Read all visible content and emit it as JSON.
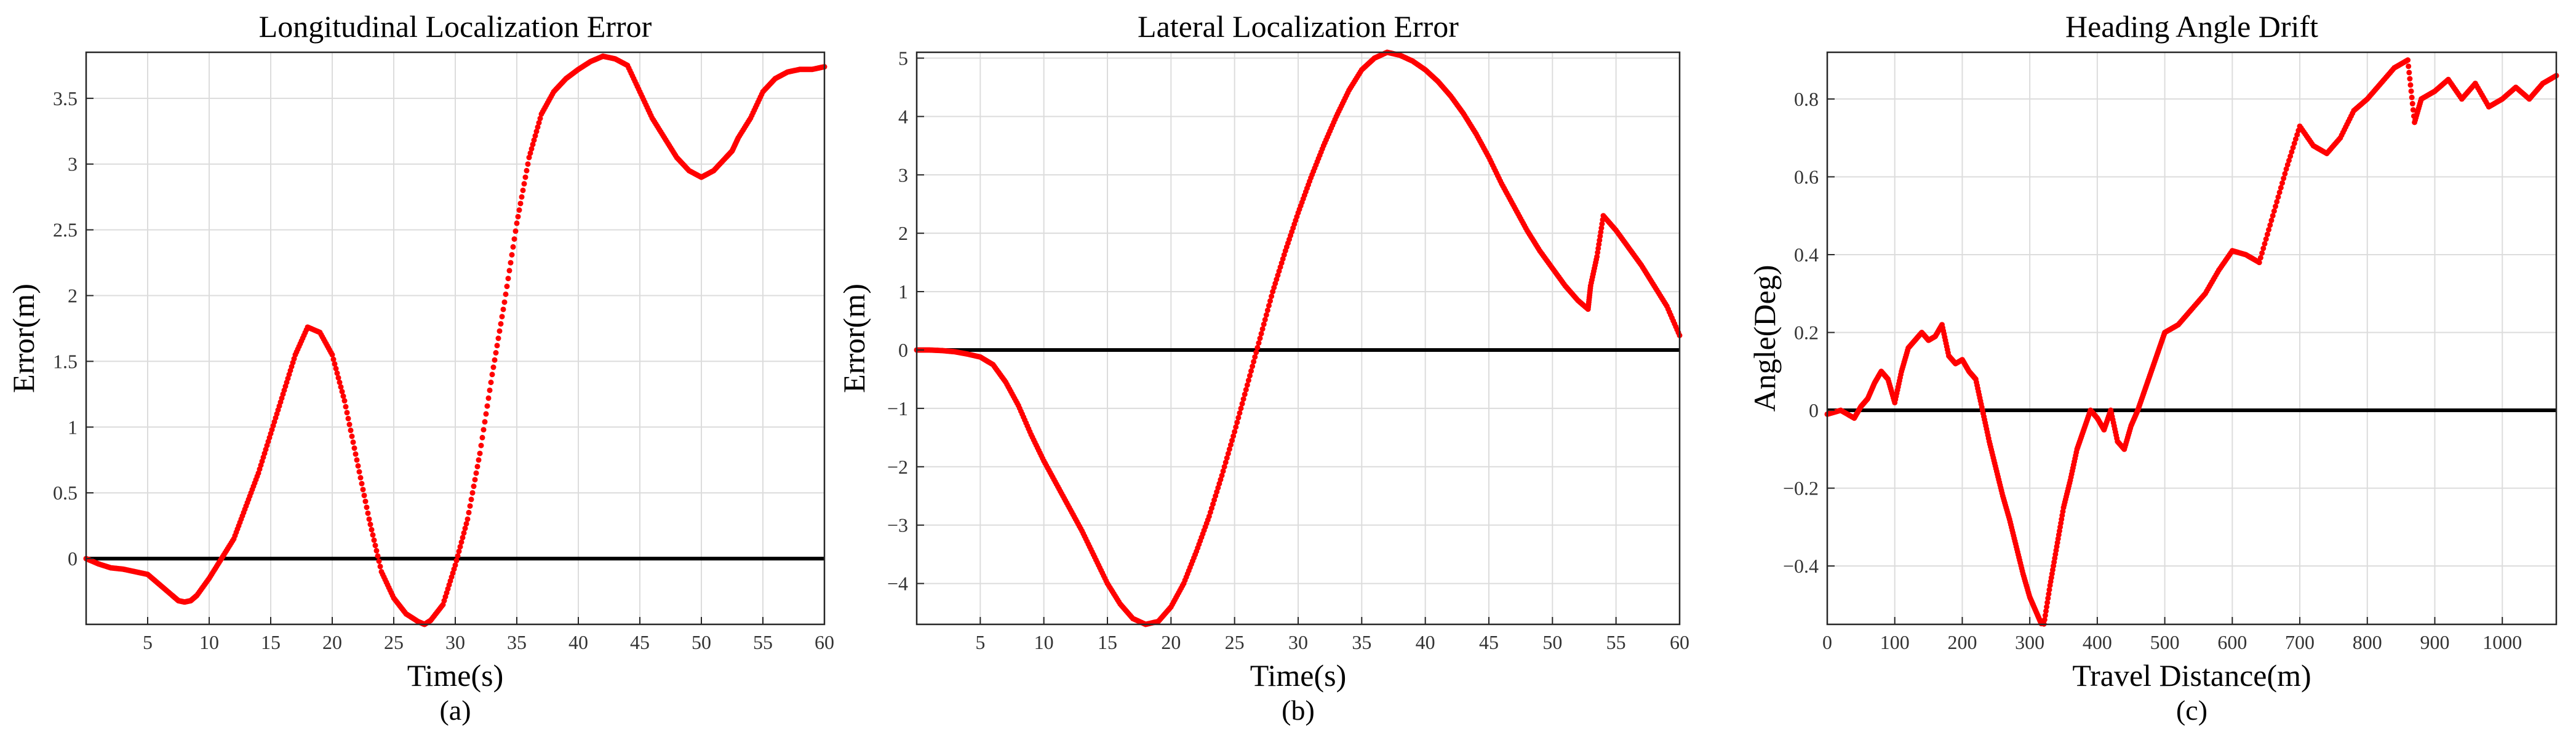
{
  "chart_data": [
    {
      "type": "scatter",
      "title": "Longitudinal Localization Error",
      "xlabel": "Time(s)",
      "ylabel": "Error(m)",
      "caption": "(a)",
      "xlim": [
        0,
        60
      ],
      "ylim": [
        -0.5,
        3.85
      ],
      "xticks": [
        5,
        10,
        15,
        20,
        25,
        30,
        35,
        40,
        45,
        50,
        55,
        60
      ],
      "yticks": [
        0,
        0.5,
        1,
        1.5,
        2,
        2.5,
        3,
        3.5
      ],
      "grid": true,
      "marker_color": "#ff0000",
      "reference_line": {
        "y": 0,
        "color": "#000000"
      },
      "series": [
        {
          "x": [
            0,
            1,
            2,
            3,
            4,
            5,
            6,
            7,
            7.5,
            8,
            8.5,
            9,
            10,
            11,
            12,
            13,
            14,
            15,
            16,
            17,
            18,
            19,
            20,
            21,
            22,
            23,
            24,
            25,
            26,
            27,
            27.5,
            28,
            29,
            30,
            31,
            32,
            33,
            34,
            35,
            36,
            37,
            38,
            39,
            40,
            41,
            42,
            43,
            44,
            45,
            46,
            47,
            48,
            49,
            50,
            51,
            52,
            52.5,
            53,
            54,
            55,
            56,
            57,
            58,
            59,
            60
          ],
          "y": [
            0,
            -0.04,
            -0.07,
            -0.08,
            -0.1,
            -0.12,
            -0.2,
            -0.28,
            -0.32,
            -0.33,
            -0.32,
            -0.28,
            -0.15,
            0.0,
            0.15,
            0.4,
            0.65,
            0.95,
            1.25,
            1.55,
            1.76,
            1.72,
            1.55,
            1.2,
            0.75,
            0.3,
            -0.1,
            -0.3,
            -0.42,
            -0.48,
            -0.5,
            -0.47,
            -0.35,
            -0.05,
            0.3,
            0.8,
            1.4,
            1.95,
            2.55,
            3.05,
            3.38,
            3.55,
            3.65,
            3.72,
            3.78,
            3.82,
            3.8,
            3.75,
            3.55,
            3.35,
            3.2,
            3.05,
            2.95,
            2.9,
            2.95,
            3.05,
            3.1,
            3.2,
            3.35,
            3.55,
            3.65,
            3.7,
            3.72,
            3.72,
            3.74
          ]
        }
      ]
    },
    {
      "type": "scatter",
      "title": "Lateral Localization Error",
      "xlabel": "Time(s)",
      "ylabel": "Error(m)",
      "caption": "(b)",
      "xlim": [
        0,
        60
      ],
      "ylim": [
        -4.7,
        5.1
      ],
      "xticks": [
        5,
        10,
        15,
        20,
        25,
        30,
        35,
        40,
        45,
        50,
        55,
        60
      ],
      "yticks": [
        -4,
        -3,
        -2,
        -1,
        0,
        1,
        2,
        3,
        4,
        5
      ],
      "grid": true,
      "marker_color": "#ff0000",
      "reference_line": {
        "y": 0,
        "color": "#000000"
      },
      "series": [
        {
          "x": [
            0,
            1,
            2,
            3,
            4,
            5,
            6,
            7,
            8,
            9,
            10,
            11,
            12,
            13,
            14,
            15,
            16,
            17,
            18,
            19,
            20,
            21,
            22,
            23,
            24,
            25,
            26,
            27,
            28,
            29,
            30,
            31,
            32,
            33,
            34,
            35,
            36,
            37,
            38,
            39,
            40,
            41,
            42,
            43,
            44,
            45,
            46,
            47,
            48,
            49,
            50,
            51,
            52,
            52.8,
            53,
            53.5,
            54,
            55,
            56,
            57,
            58,
            59,
            60
          ],
          "y": [
            0,
            0,
            -0.01,
            -0.03,
            -0.07,
            -0.12,
            -0.25,
            -0.55,
            -0.95,
            -1.45,
            -1.9,
            -2.3,
            -2.7,
            -3.1,
            -3.55,
            -4.0,
            -4.35,
            -4.6,
            -4.7,
            -4.65,
            -4.4,
            -4.0,
            -3.45,
            -2.85,
            -2.15,
            -1.4,
            -0.6,
            0.2,
            1.0,
            1.7,
            2.35,
            2.95,
            3.5,
            4.0,
            4.45,
            4.8,
            5.0,
            5.1,
            5.05,
            4.95,
            4.8,
            4.6,
            4.35,
            4.05,
            3.7,
            3.3,
            2.85,
            2.45,
            2.05,
            1.7,
            1.4,
            1.1,
            0.85,
            0.7,
            1.1,
            1.6,
            2.3,
            2.05,
            1.75,
            1.45,
            1.1,
            0.75,
            0.25
          ]
        }
      ]
    },
    {
      "type": "scatter",
      "title": "Heading Angle Drift",
      "xlabel": "Travel Distance(m)",
      "ylabel": "Angle(Deg)",
      "caption": "(c)",
      "xlim": [
        0,
        1080
      ],
      "ylim": [
        -0.55,
        0.92
      ],
      "xticks": [
        0,
        100,
        200,
        300,
        400,
        500,
        600,
        700,
        800,
        900,
        1000
      ],
      "yticks": [
        -0.4,
        -0.2,
        0,
        0.2,
        0.4,
        0.6,
        0.8
      ],
      "grid": true,
      "marker_color": "#ff0000",
      "reference_line": {
        "y": 0,
        "color": "#000000"
      },
      "series": [
        {
          "x": [
            0,
            20,
            40,
            50,
            60,
            70,
            80,
            90,
            100,
            110,
            120,
            130,
            140,
            150,
            160,
            170,
            180,
            190,
            200,
            210,
            220,
            230,
            240,
            250,
            260,
            270,
            280,
            290,
            300,
            310,
            320,
            330,
            340,
            350,
            360,
            370,
            380,
            390,
            400,
            410,
            420,
            430,
            440,
            450,
            460,
            470,
            480,
            490,
            500,
            520,
            540,
            560,
            580,
            600,
            620,
            640,
            660,
            680,
            700,
            720,
            740,
            760,
            780,
            800,
            820,
            840,
            860,
            870,
            880,
            900,
            920,
            940,
            960,
            980,
            1000,
            1020,
            1040,
            1060,
            1080
          ],
          "y": [
            -0.01,
            0.0,
            -0.02,
            0.01,
            0.03,
            0.07,
            0.1,
            0.08,
            0.02,
            0.1,
            0.16,
            0.18,
            0.2,
            0.18,
            0.19,
            0.22,
            0.14,
            0.12,
            0.13,
            0.1,
            0.08,
            0.0,
            -0.08,
            -0.15,
            -0.22,
            -0.28,
            -0.35,
            -0.42,
            -0.48,
            -0.52,
            -0.56,
            -0.45,
            -0.35,
            -0.25,
            -0.18,
            -0.1,
            -0.05,
            0.0,
            -0.02,
            -0.05,
            0.0,
            -0.08,
            -0.1,
            -0.04,
            0.0,
            0.05,
            0.1,
            0.15,
            0.2,
            0.22,
            0.26,
            0.3,
            0.36,
            0.41,
            0.4,
            0.38,
            0.5,
            0.62,
            0.73,
            0.68,
            0.66,
            0.7,
            0.77,
            0.8,
            0.84,
            0.88,
            0.9,
            0.74,
            0.8,
            0.82,
            0.85,
            0.8,
            0.84,
            0.78,
            0.8,
            0.83,
            0.8,
            0.84,
            0.86
          ]
        }
      ]
    }
  ]
}
